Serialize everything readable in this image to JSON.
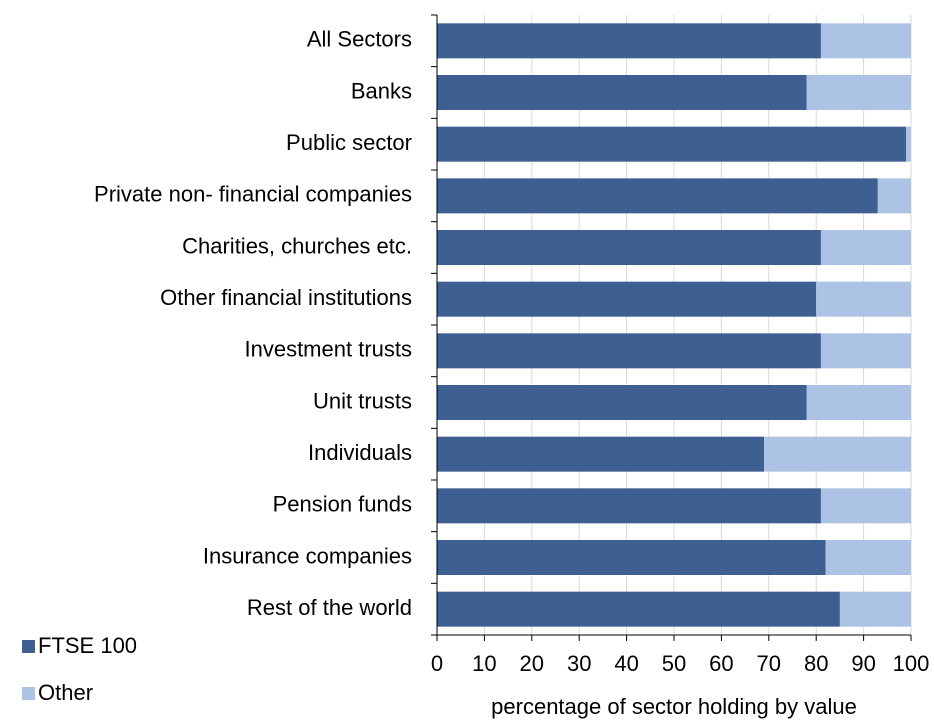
{
  "chart_data": {
    "type": "stacked-barh",
    "categories": [
      "All Sectors",
      "Banks",
      "Public sector",
      "Private non- financial companies",
      "Charities, churches etc.",
      "Other financial institutions",
      "Investment trusts",
      "Unit trusts",
      "Individuals",
      "Pension funds",
      "Insurance companies",
      "Rest of the world"
    ],
    "series": [
      {
        "name": "FTSE 100",
        "color": "#3d5f92",
        "values": [
          81,
          78,
          99,
          93,
          81,
          80,
          81,
          78,
          69,
          81,
          82,
          85
        ]
      },
      {
        "name": "Other",
        "color": "#adc3e5",
        "values": [
          19,
          22,
          1,
          7,
          19,
          20,
          19,
          22,
          31,
          19,
          18,
          15
        ]
      }
    ],
    "xlabel": "percentage of sector holding by value",
    "xlim": [
      0,
      100
    ],
    "xticks": [
      0,
      10,
      20,
      30,
      40,
      50,
      60,
      70,
      80,
      90,
      100
    ],
    "grid": true,
    "legend": "bottom-left"
  }
}
